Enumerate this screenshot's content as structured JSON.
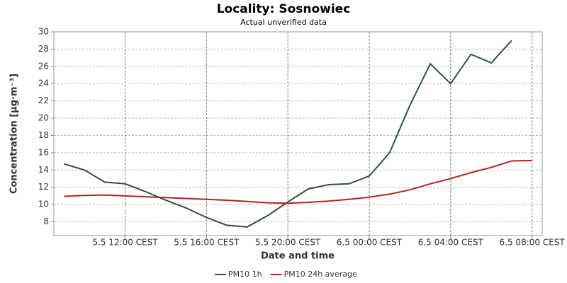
{
  "chart_data": {
    "type": "line",
    "title": "Locality: Sosnowiec",
    "subtitle": "Actual unverified data",
    "x_label": "Date and time",
    "y_label": "Concentration [µg·m⁻³]",
    "x": [
      9,
      10,
      11,
      12,
      13,
      14,
      15,
      16,
      17,
      18,
      19,
      20,
      21,
      22,
      23,
      24,
      25,
      26,
      27,
      28,
      29,
      30,
      31,
      32
    ],
    "xlim": [
      8.5,
      32.5
    ],
    "xticks": [
      {
        "value": 12,
        "label": "5.5 12:00 CEST"
      },
      {
        "value": 16,
        "label": "5.5 16:00 CEST"
      },
      {
        "value": 20,
        "label": "5.5 20:00 CEST"
      },
      {
        "value": 24,
        "label": "6.5 00:00 CEST"
      },
      {
        "value": 28,
        "label": "6.5 04:00 CEST"
      },
      {
        "value": 32,
        "label": "6.5 08:00 CEST"
      }
    ],
    "ylim": [
      6.4,
      30
    ],
    "yticks": [
      8,
      10,
      12,
      14,
      16,
      18,
      20,
      22,
      24,
      26,
      28,
      30
    ],
    "grid": true,
    "legend": "bottom",
    "series": [
      {
        "name": "PM10 1h",
        "color": "#2f4f4f",
        "values": [
          14.7,
          14.0,
          12.6,
          12.4,
          11.5,
          10.5,
          9.6,
          8.5,
          7.6,
          7.4,
          8.7,
          10.3,
          11.8,
          12.3,
          12.4,
          13.3,
          16.0,
          21.5,
          26.3,
          24.0,
          27.4,
          26.4,
          29.0,
          null
        ]
      },
      {
        "name": "PM10 24h average",
        "color": "#b22222",
        "values": [
          10.95,
          11.05,
          11.1,
          11.0,
          10.9,
          10.8,
          10.7,
          10.6,
          10.5,
          10.35,
          10.2,
          10.15,
          10.25,
          10.4,
          10.6,
          10.85,
          11.2,
          11.7,
          12.4,
          13.0,
          13.7,
          14.3,
          15.05,
          15.1
        ]
      }
    ]
  }
}
